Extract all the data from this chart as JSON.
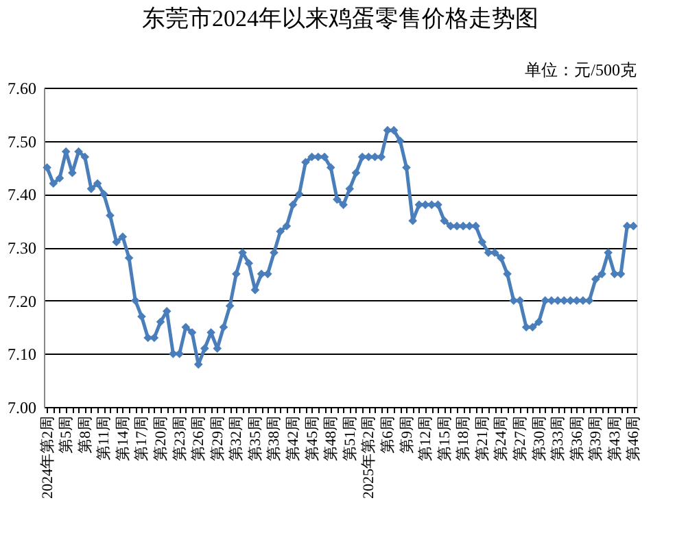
{
  "chart_data": {
    "type": "line",
    "title": "东莞市2024年以来鸡蛋零售价格走势图",
    "annotations": [
      "单位：元/500克"
    ],
    "categories": [
      "2024年第2周",
      null,
      null,
      "第5周",
      null,
      null,
      "第8周",
      null,
      null,
      "第11周",
      null,
      null,
      "第14周",
      null,
      null,
      "第17周",
      null,
      null,
      "第20周",
      null,
      null,
      "第23周",
      null,
      null,
      "第26周",
      null,
      null,
      "第29周",
      null,
      null,
      "第32周",
      null,
      null,
      "第35周",
      null,
      null,
      "第38周",
      null,
      null,
      "第42周",
      null,
      null,
      "第45周",
      null,
      null,
      "第48周",
      null,
      null,
      "第51周",
      null,
      null,
      "2025年第2周",
      null,
      null,
      "第6周",
      null,
      null,
      "第9周",
      null,
      null,
      "第12周",
      null,
      null,
      "第15周",
      null,
      null,
      "第18周",
      null,
      null,
      "第21周",
      null,
      null,
      "第24周",
      null,
      null,
      "第27周",
      null,
      null,
      "第30周",
      null,
      null,
      "第33周",
      null,
      null,
      "第36周",
      null,
      null,
      "第39周",
      null,
      null,
      "第43周",
      null,
      null,
      "第46周"
    ],
    "series": [
      {
        "color": "#4a7ebb",
        "values": [
          7.45,
          7.42,
          7.43,
          7.48,
          7.44,
          7.48,
          7.47,
          7.41,
          7.42,
          7.4,
          7.36,
          7.31,
          7.32,
          7.28,
          7.2,
          7.17,
          7.13,
          7.13,
          7.16,
          7.18,
          7.1,
          7.1,
          7.15,
          7.14,
          7.08,
          7.11,
          7.14,
          7.11,
          7.15,
          7.19,
          7.25,
          7.29,
          7.27,
          7.22,
          7.25,
          7.25,
          7.29,
          7.33,
          7.34,
          7.38,
          7.4,
          7.46,
          7.47,
          7.47,
          7.47,
          7.45,
          7.39,
          7.38,
          7.41,
          7.44,
          7.47,
          7.47,
          7.47,
          7.47,
          7.52,
          7.52,
          7.5,
          7.45,
          7.35,
          7.38,
          7.38,
          7.38,
          7.38,
          7.35,
          7.34,
          7.34,
          7.34,
          7.34,
          7.34,
          7.31,
          7.29,
          7.29,
          7.28,
          7.25,
          7.2,
          7.2,
          7.15,
          7.15,
          7.16,
          7.2,
          7.2,
          7.2,
          7.2,
          7.2,
          7.2,
          7.2,
          7.2,
          7.24,
          7.25,
          7.29,
          7.25,
          7.25,
          7.34,
          7.34
        ]
      }
    ],
    "ylim": [
      7.0,
      7.6
    ],
    "yticks": [
      {
        "value": 7.0,
        "label": "7.00"
      },
      {
        "value": 7.1,
        "label": "7.10"
      },
      {
        "value": 7.2,
        "label": "7.20"
      },
      {
        "value": 7.3,
        "label": "7.30"
      },
      {
        "value": 7.4,
        "label": "7.40"
      },
      {
        "value": 7.5,
        "label": "7.50"
      },
      {
        "value": 7.6,
        "label": "7.60"
      }
    ],
    "grid": "y",
    "marker": "diamond",
    "line_style": "solid"
  }
}
